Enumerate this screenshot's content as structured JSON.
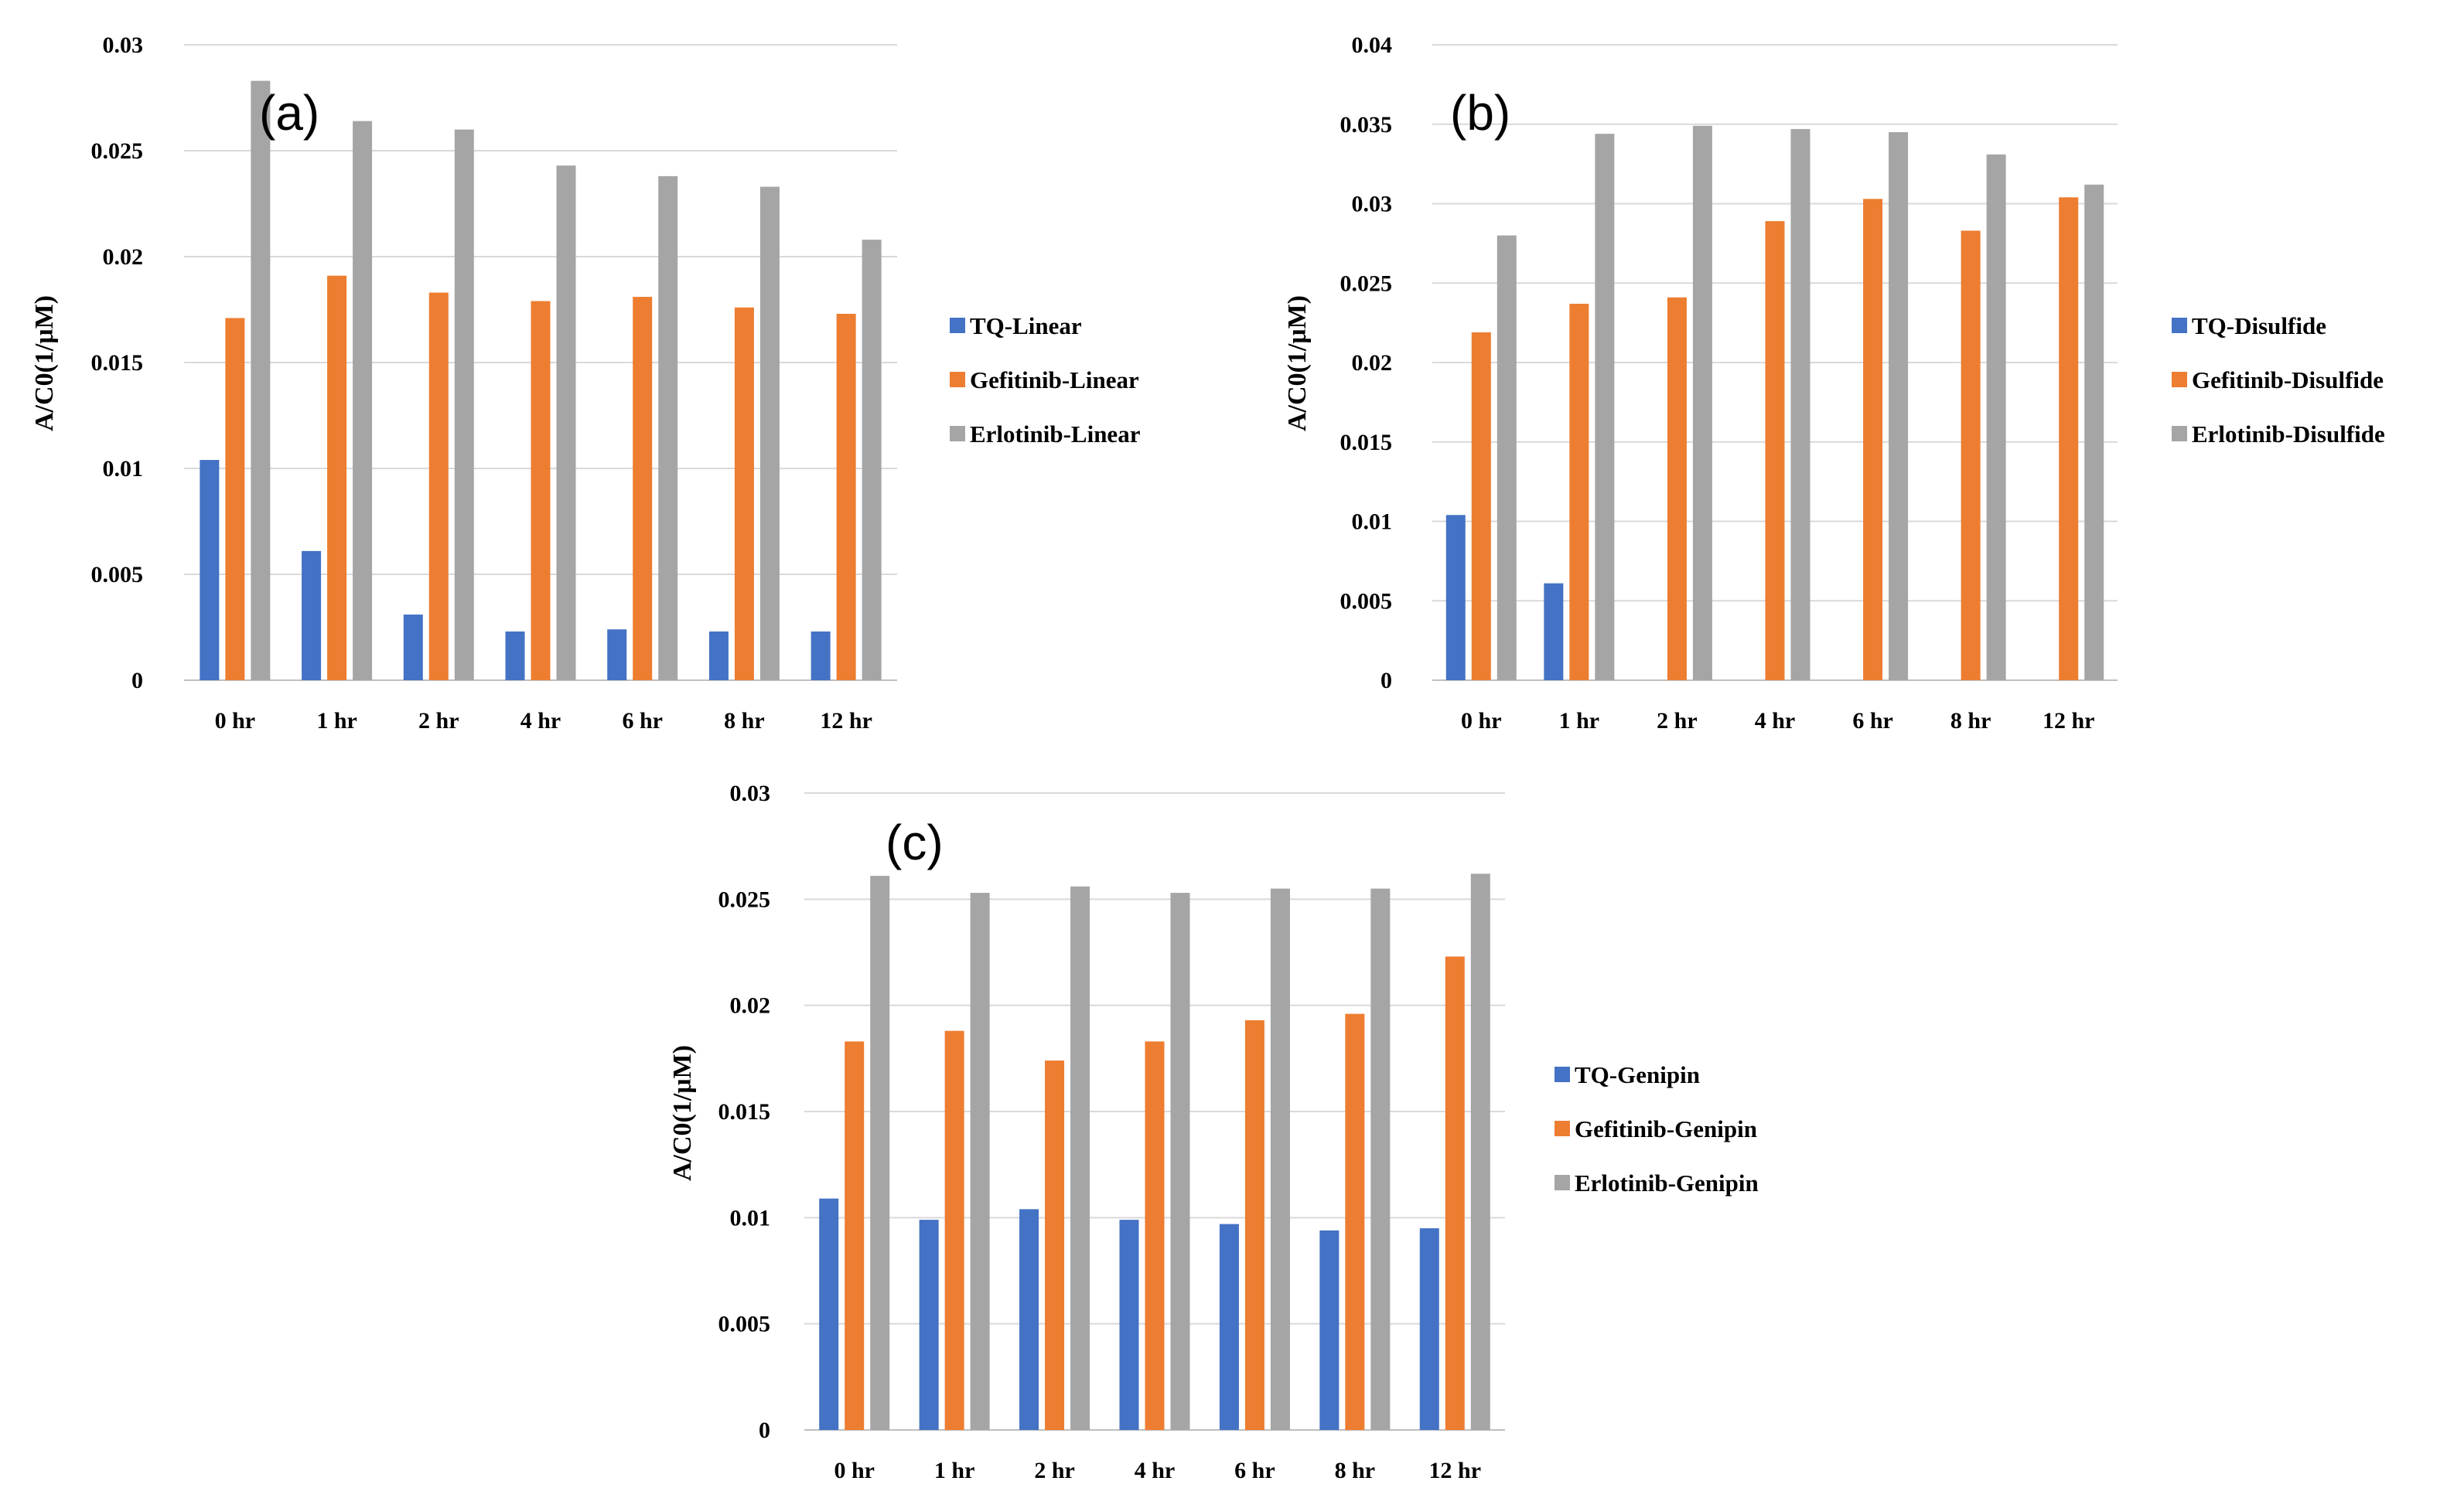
{
  "colors": {
    "tq": "#4472C4",
    "gefitinib": "#ED7D31",
    "erlotinib": "#A5A5A5"
  },
  "chart_data": [
    {
      "type": "bar",
      "panel_label": "(a)",
      "ylabel": "A/C0(1/μM)",
      "categories": [
        "0 hr",
        "1 hr",
        "2 hr",
        "4 hr",
        "6 hr",
        "8 hr",
        "12 hr"
      ],
      "ylim": [
        0,
        0.03
      ],
      "yticks": [
        "0",
        "0.005",
        "0.01",
        "0.015",
        "0.02",
        "0.025",
        "0.03"
      ],
      "legend_position": "right",
      "series": [
        {
          "name": "TQ-Linear",
          "color": "#4472C4",
          "values": [
            0.0104,
            0.0061,
            0.0031,
            0.0023,
            0.0024,
            0.0023,
            0.0023
          ]
        },
        {
          "name": "Gefitinib-Linear",
          "color": "#ED7D31",
          "values": [
            0.0171,
            0.0191,
            0.0183,
            0.0179,
            0.0181,
            0.0176,
            0.0173
          ]
        },
        {
          "name": "Erlotinib-Linear",
          "color": "#A5A5A5",
          "values": [
            0.0283,
            0.0264,
            0.026,
            0.0243,
            0.0238,
            0.0233,
            0.0208
          ]
        }
      ]
    },
    {
      "type": "bar",
      "panel_label": "(b)",
      "ylabel": "A/C0(1/μM)",
      "categories": [
        "0 hr",
        "1 hr",
        "2 hr",
        "4 hr",
        "6 hr",
        "8 hr",
        "12 hr"
      ],
      "ylim": [
        0,
        0.04
      ],
      "yticks": [
        "0",
        "0.005",
        "0.01",
        "0.015",
        "0.02",
        "0.025",
        "0.03",
        "0.035",
        "0.04"
      ],
      "legend_position": "right",
      "series": [
        {
          "name": "TQ-Disulfide",
          "color": "#4472C4",
          "values": [
            0.0104,
            0.0061,
            0,
            0,
            0,
            0,
            0
          ]
        },
        {
          "name": "Gefitinib-Disulfide",
          "color": "#ED7D31",
          "values": [
            0.0219,
            0.0237,
            0.0241,
            0.0289,
            0.0303,
            0.0283,
            0.0304
          ]
        },
        {
          "name": "Erlotinib-Disulfide",
          "color": "#A5A5A5",
          "values": [
            0.028,
            0.0344,
            0.0349,
            0.0347,
            0.0345,
            0.0331,
            0.0312
          ]
        }
      ]
    },
    {
      "type": "bar",
      "panel_label": "(c)",
      "ylabel": "A/C0(1/μM)",
      "categories": [
        "0 hr",
        "1 hr",
        "2 hr",
        "4 hr",
        "6 hr",
        "8 hr",
        "12 hr"
      ],
      "ylim": [
        0,
        0.03
      ],
      "yticks": [
        "0",
        "0.005",
        "0.01",
        "0.015",
        "0.02",
        "0.025",
        "0.03"
      ],
      "legend_position": "right",
      "series": [
        {
          "name": "TQ-Genipin",
          "color": "#4472C4",
          "values": [
            0.0109,
            0.0099,
            0.0104,
            0.0099,
            0.0097,
            0.0094,
            0.0095
          ]
        },
        {
          "name": "Gefitinib-Genipin",
          "color": "#ED7D31",
          "values": [
            0.0183,
            0.0188,
            0.0174,
            0.0183,
            0.0193,
            0.0196,
            0.0223
          ]
        },
        {
          "name": "Erlotinib-Genipin",
          "color": "#A5A5A5",
          "values": [
            0.0261,
            0.0253,
            0.0256,
            0.0253,
            0.0255,
            0.0255,
            0.0262
          ]
        }
      ]
    }
  ]
}
